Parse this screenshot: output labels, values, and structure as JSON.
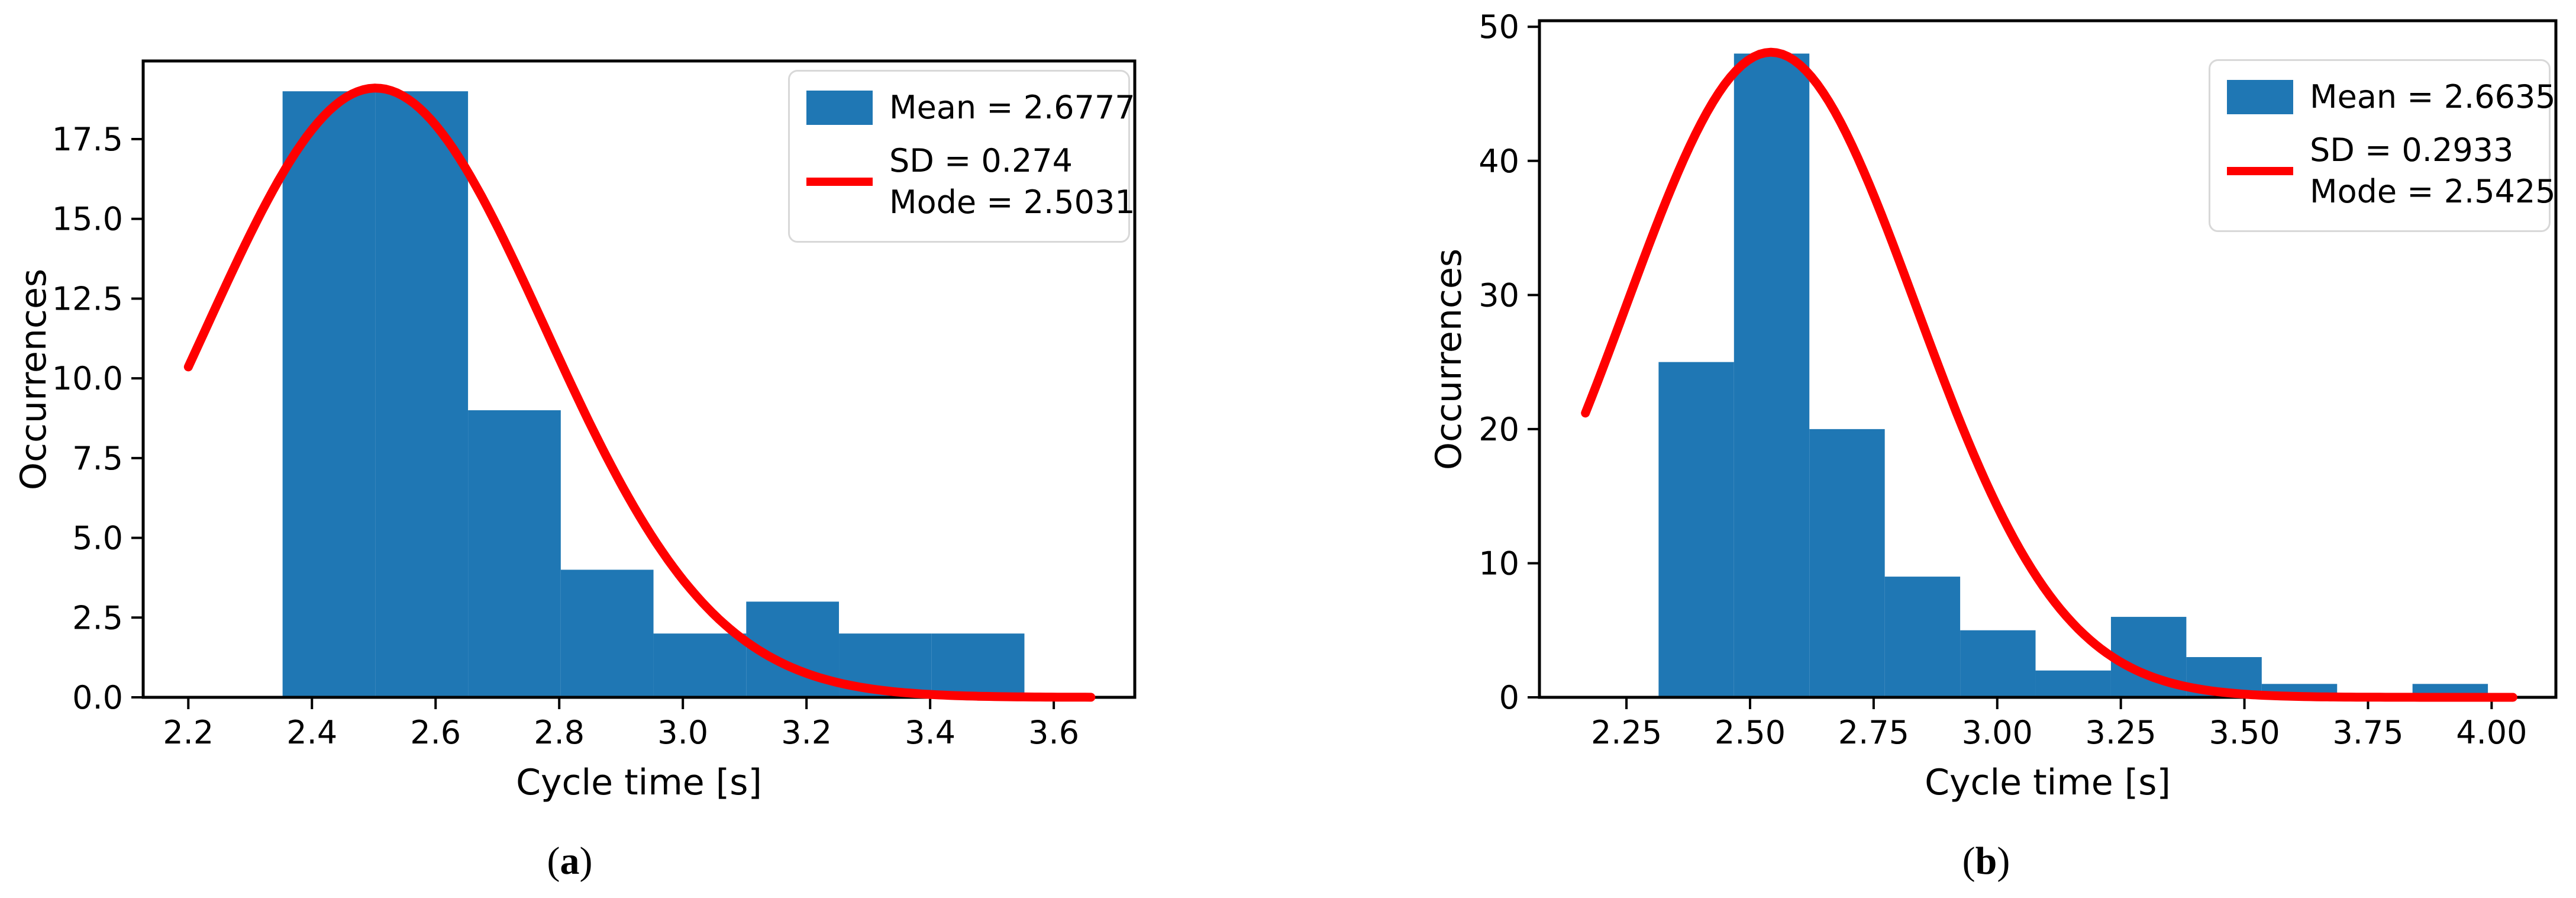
{
  "page": {
    "background": "#ffffff"
  },
  "chart_data": [
    {
      "id": "a",
      "type": "bar",
      "subtype": "histogram-with-gaussian-fit",
      "caption": "(a)",
      "xlabel": "Cycle time [s]",
      "ylabel": "Occurrences",
      "bar_color": "#1f77b4",
      "bin_start": 2.3525,
      "bin_width": 0.15,
      "counts": [
        19,
        19,
        9,
        4,
        2,
        3,
        2,
        2
      ],
      "curve": {
        "shape": "gaussian",
        "color": "#ff0000",
        "amplitude": 19.1,
        "mode": 2.5031,
        "sd": 0.274,
        "x_start": 2.2,
        "x_end": 3.66
      },
      "legend": {
        "position": "upper right",
        "mean_label": "Mean = 2.6777",
        "sd_label": "SD = 0.274",
        "mode_label": "Mode = 2.5031"
      },
      "xlim": [
        2.127,
        3.731
      ],
      "ylim": [
        0,
        19.95
      ],
      "xticks": [
        2.2,
        2.4,
        2.6,
        2.8,
        3.0,
        3.2,
        3.4,
        3.6
      ],
      "xtick_labels": [
        "2.2",
        "2.4",
        "2.6",
        "2.8",
        "3.0",
        "3.2",
        "3.4",
        "3.6"
      ],
      "yticks": [
        0,
        2.5,
        5,
        7.5,
        10,
        12.5,
        15,
        17.5
      ],
      "ytick_labels": [
        "0.0",
        "2.5",
        "5.0",
        "7.5",
        "10.0",
        "12.5",
        "15.0",
        "17.5"
      ],
      "grid": false
    },
    {
      "id": "b",
      "type": "bar",
      "subtype": "histogram-with-gaussian-fit",
      "caption": "(b)",
      "xlabel": "Cycle time [s]",
      "ylabel": "Occurrences",
      "bar_color": "#1f77b4",
      "bin_start": 2.315,
      "bin_width": 0.1525,
      "counts": [
        25,
        48,
        20,
        9,
        5,
        2,
        6,
        3,
        1,
        0,
        1
      ],
      "curve": {
        "shape": "gaussian",
        "color": "#ff0000",
        "amplitude": 48.1,
        "mode": 2.5425,
        "sd": 0.2933,
        "x_start": 2.167,
        "x_end": 4.043
      },
      "legend": {
        "position": "upper right",
        "mean_label": "Mean = 2.6635",
        "sd_label": "SD = 0.2933",
        "mode_label": "Mode = 2.5425"
      },
      "xlim": [
        2.074,
        4.13
      ],
      "ylim": [
        0,
        50.45
      ],
      "xticks": [
        2.25,
        2.5,
        2.75,
        3.0,
        3.25,
        3.5,
        3.75,
        4.0
      ],
      "xtick_labels": [
        "2.25",
        "2.50",
        "2.75",
        "3.00",
        "3.25",
        "3.50",
        "3.75",
        "4.00"
      ],
      "yticks": [
        0,
        10,
        20,
        30,
        40,
        50
      ],
      "ytick_labels": [
        "0",
        "10",
        "20",
        "30",
        "40",
        "50"
      ],
      "grid": false
    }
  ]
}
